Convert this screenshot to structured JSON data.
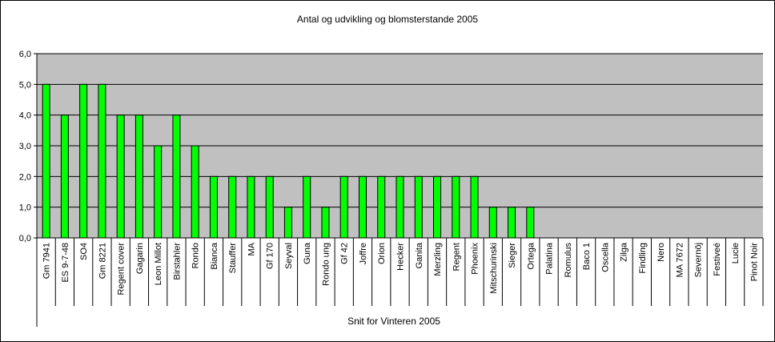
{
  "chart_data": {
    "type": "bar",
    "title": "Antal og udvikling og blomsterstande 2005",
    "xlabel": "Snit for Vinteren 2005",
    "ylabel": "",
    "ylim": [
      0,
      6
    ],
    "yticks": [
      0,
      1,
      2,
      3,
      4,
      5,
      6
    ],
    "ytick_labels": [
      "0,0",
      "1,0",
      "2,0",
      "3,0",
      "4,0",
      "5,0",
      "6,0"
    ],
    "grid": true,
    "legend": "none",
    "colors": {
      "bar": "#00ff00",
      "plot_bg": "#c0c0c0",
      "grid": "#000000"
    },
    "categories": [
      "Gm 7941",
      "ES 9-7-48",
      "SO4",
      "Gm 8221",
      "Regent cover",
      "Gagarin",
      "Leon Millot",
      "Birstahler",
      "Rondo",
      "Bianca",
      "Stauffer",
      "MA",
      "Gf 170",
      "Seyval",
      "Guna",
      "Rondo ung",
      "Gf 42",
      "Joffre",
      "Orion",
      "Hecker",
      "Ganita",
      "Merzling",
      "Regent",
      "Phoenix",
      "Mitschurinski",
      "Sieger",
      "Ortega",
      "Palatina",
      "Romulus",
      "Baco 1",
      "Oscella",
      "Zilga",
      "Findling",
      "Nero",
      "MA 7672",
      "Severnöj",
      "Festiveé",
      "Lucie",
      "Pinot Noir"
    ],
    "values": [
      5,
      4,
      5,
      5,
      4,
      4,
      3,
      4,
      3,
      2,
      2,
      2,
      2,
      1,
      2,
      1,
      2,
      2,
      2,
      2,
      2,
      2,
      2,
      2,
      1,
      1,
      1,
      0,
      0,
      0,
      0,
      0,
      0,
      0,
      0,
      0,
      0,
      0,
      0
    ]
  }
}
